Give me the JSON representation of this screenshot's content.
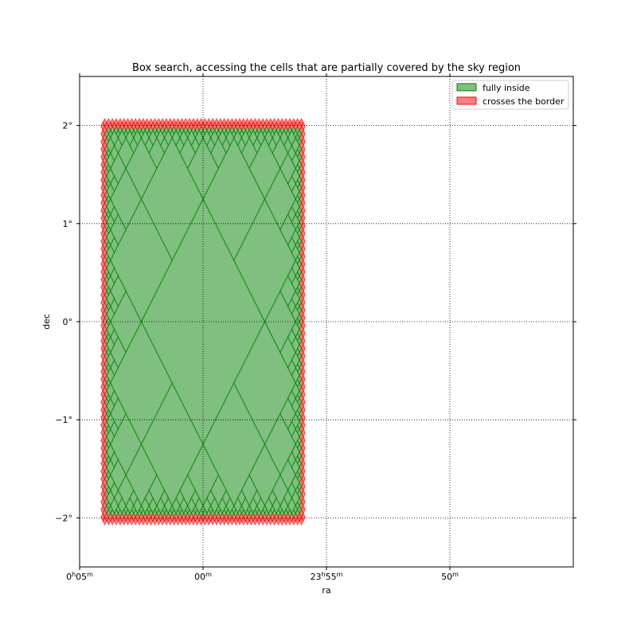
{
  "chart_data": {
    "type": "area",
    "title": "Box search, accessing the cells that are partially covered by the sky region",
    "xlabel": "ra",
    "ylabel": "dec",
    "xlim_deg": [
      2.5,
      -7.5
    ],
    "ylim_deg": [
      -2.5,
      2.5
    ],
    "x_ticks": [
      {
        "value": 2.5,
        "h": "0",
        "m": "05"
      },
      {
        "value": 0,
        "h": "",
        "m": "00"
      },
      {
        "value": -2.5,
        "h": "23",
        "m": "55"
      },
      {
        "value": -5.0,
        "h": "",
        "m": "50"
      }
    ],
    "y_ticks": [
      {
        "value": 2,
        "label": "2°"
      },
      {
        "value": 1,
        "label": "1°"
      },
      {
        "value": 0,
        "label": "0°"
      },
      {
        "value": -1,
        "label": "−1°"
      },
      {
        "value": -2,
        "label": "−2°"
      }
    ],
    "grid": true,
    "legend_position": "top-right",
    "series": [
      {
        "name": "fully inside",
        "color": "#008000",
        "alpha": 0.5
      },
      {
        "name": "crosses the border",
        "color": "#ff0000",
        "alpha": 0.5
      }
    ],
    "region": {
      "ra_min": -2.0,
      "ra_max": 2.0,
      "dec_min": -2.0,
      "dec_max": 2.0
    }
  }
}
